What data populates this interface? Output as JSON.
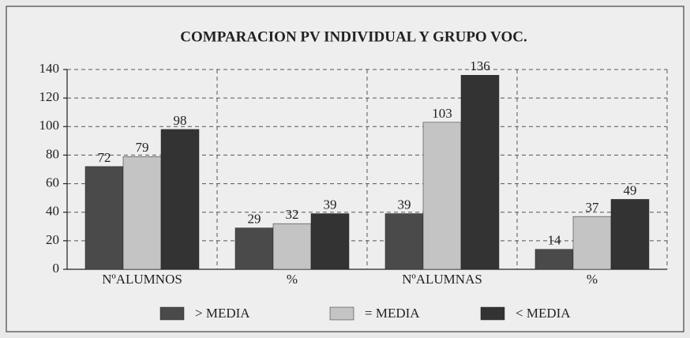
{
  "chart_data": {
    "type": "bar",
    "title": "COMPARACION PV INDIVIDUAL Y GRUPO VOC.",
    "categories": [
      "NºALUMNOS",
      "%",
      "NºALUMNAS",
      "%"
    ],
    "series": [
      {
        "name": "> MEDIA",
        "color": "#4a4a4a",
        "values": [
          72,
          29,
          39,
          14
        ]
      },
      {
        "name": "= MEDIA",
        "color": "#c4c4c4",
        "values": [
          79,
          32,
          103,
          37
        ]
      },
      {
        "name": "< MEDIA",
        "color": "#333333",
        "values": [
          98,
          39,
          136,
          49
        ]
      }
    ],
    "ylim": [
      0,
      140
    ],
    "yticks": [
      0,
      20,
      40,
      60,
      80,
      100,
      120,
      140
    ],
    "grid": true
  }
}
